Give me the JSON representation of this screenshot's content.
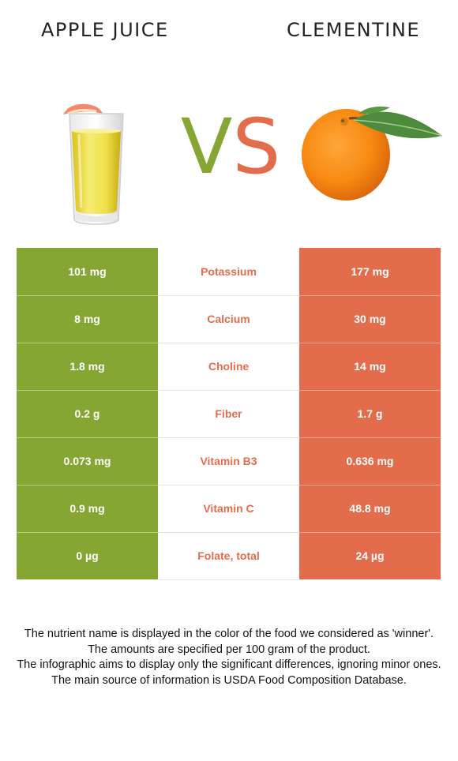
{
  "header": {
    "left_title": "APPLE JUICE",
    "right_title": "CLEMENTINE",
    "vs_v": "V",
    "vs_s": "S"
  },
  "colors": {
    "winner_left": "#86a634",
    "winner_right": "#e36c4c"
  },
  "rows": [
    {
      "nutrient": "Potassium",
      "left": "101 mg",
      "right": "177 mg"
    },
    {
      "nutrient": "Calcium",
      "left": "8 mg",
      "right": "30 mg"
    },
    {
      "nutrient": "Choline",
      "left": "1.8 mg",
      "right": "14 mg"
    },
    {
      "nutrient": "Fiber",
      "left": "0.2 g",
      "right": "1.7 g"
    },
    {
      "nutrient": "Vitamin B3",
      "left": "0.073 mg",
      "right": "0.636 mg"
    },
    {
      "nutrient": "Vitamin C",
      "left": "0.9 mg",
      "right": "48.8 mg"
    },
    {
      "nutrient": "Folate, total",
      "left": "0 µg",
      "right": "24 µg"
    }
  ],
  "notes": [
    "The nutrient name is displayed in the color of the food we considered as 'winner'.",
    "The amounts are specified per 100 gram of the product.",
    "The infographic aims to display only the significant differences, ignoring minor ones.",
    "The main source of information is USDA Food Composition Database."
  ]
}
